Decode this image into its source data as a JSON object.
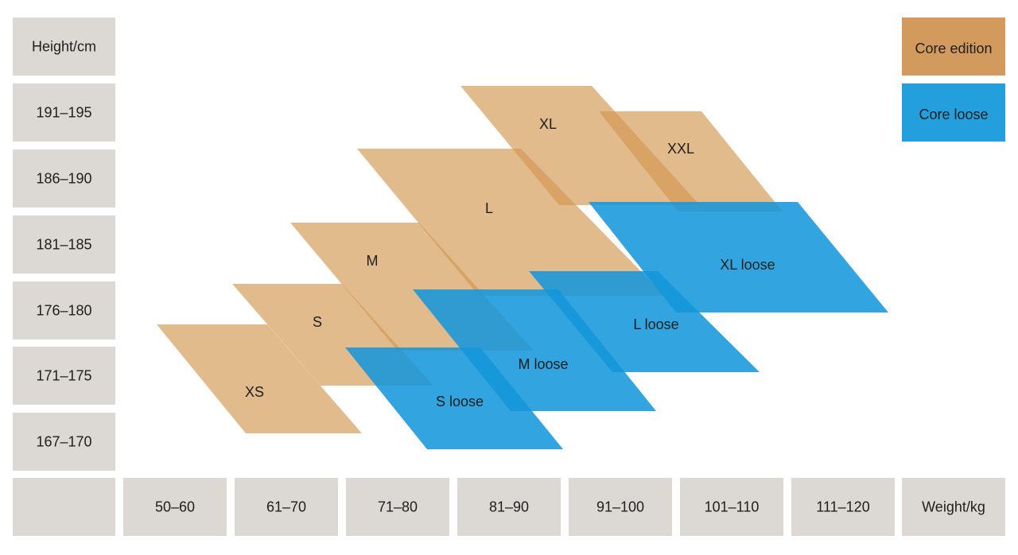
{
  "rows": {
    "header": "Height/cm",
    "labels": [
      "191–195",
      "186–190",
      "181–185",
      "176–180",
      "171–175",
      "167–170"
    ]
  },
  "columns": {
    "labels": [
      "50–60",
      "61–70",
      "71–80",
      "81–90",
      "91–100",
      "101–110",
      "111–120"
    ],
    "header": "Weight/kg"
  },
  "legend": [
    "Core edition",
    "Core loose"
  ],
  "sizes": {
    "core": [
      "XS",
      "S",
      "M",
      "L",
      "XL",
      "XXL"
    ],
    "loose": [
      "S loose",
      "M loose",
      "L loose",
      "XL loose"
    ]
  }
}
